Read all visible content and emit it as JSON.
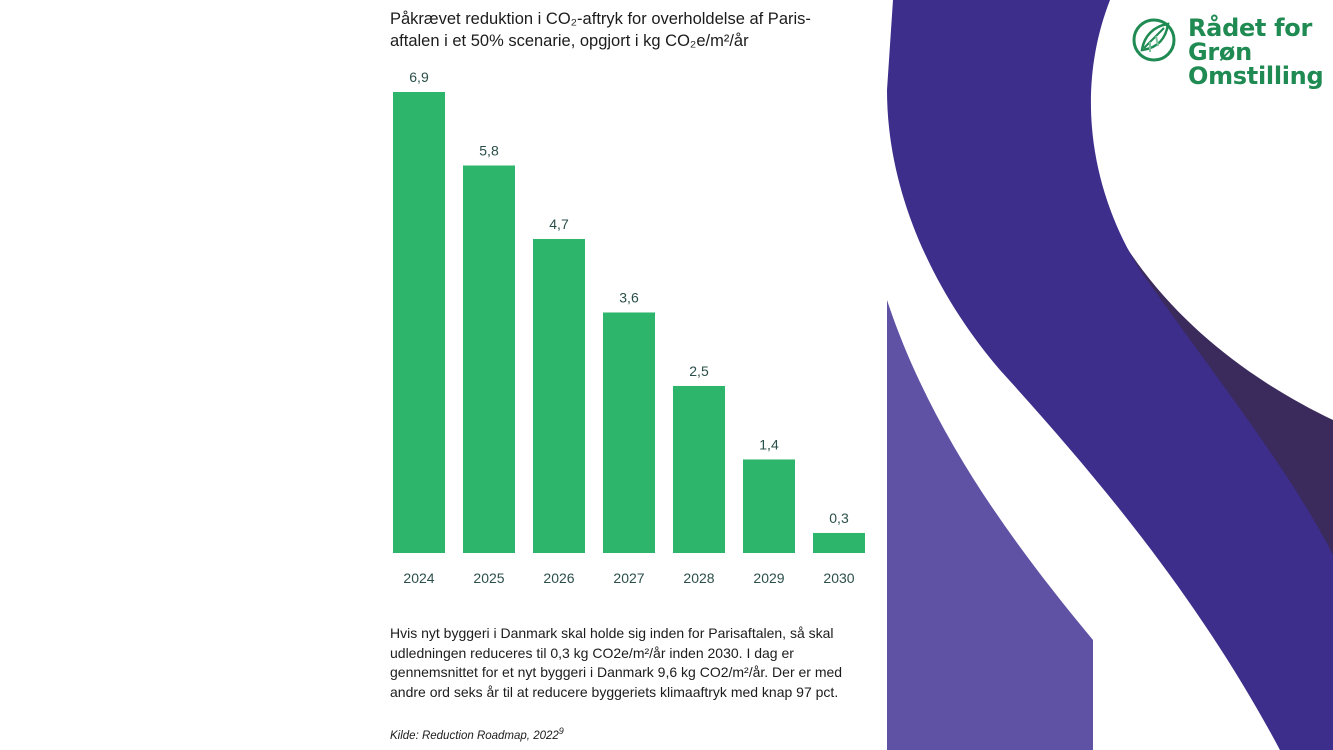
{
  "chart_data": {
    "type": "bar",
    "title": "Påkrævet reduktion i CO₂-aftryk for overholdelse af Paris-aftalen i et 50% scenarie, opgjort i kg CO₂e/m²/år",
    "categories": [
      "2024",
      "2025",
      "2026",
      "2027",
      "2028",
      "2029",
      "2030"
    ],
    "values": [
      6.9,
      5.8,
      4.7,
      3.6,
      2.5,
      1.4,
      0.3
    ],
    "value_labels": [
      "6,9",
      "5,8",
      "4,7",
      "3,6",
      "2,5",
      "1,4",
      "0,3"
    ],
    "xlabel": "",
    "ylabel": "",
    "ylim": [
      0,
      6.9
    ],
    "grid": false,
    "bar_color": "#2db56c"
  },
  "text": {
    "body": "Hvis nyt byggeri i Danmark skal holde sig inden for Parisaftalen, så skal udledningen reduceres til 0,3 kg CO2e/m²/år inden 2030. I dag er gennemsnittet for et nyt byggeri i Danmark 9,6 kg CO2/m²/år. Der er med andre ord seks år til at reducere byggeriets klimaaftryk med knap 97 pct.",
    "source": "Kilde: Reduction Roadmap, 2022",
    "source_ref": "9"
  },
  "logo": {
    "line1": "Rådet for",
    "line2": "Grøn",
    "line3": "Omstilling",
    "color": "#1f8a52"
  },
  "colors": {
    "ribbon_main": "#3d2e8c",
    "ribbon_light": "#5f52a5",
    "ribbon_dark": "#3b2a5c",
    "axis_text": "#2b4f4a"
  }
}
